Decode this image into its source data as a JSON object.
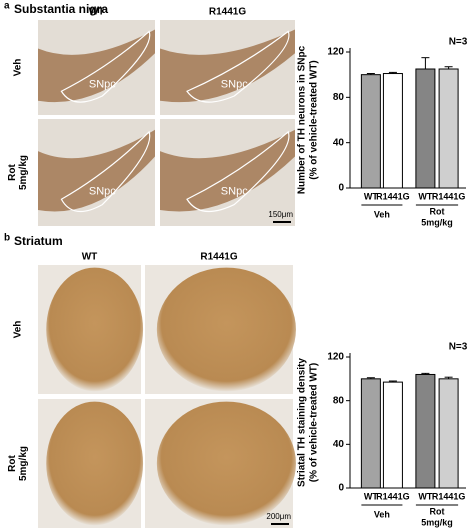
{
  "panels": [
    {
      "label": "a",
      "title": "Substantia nigra",
      "columns": [
        "WT",
        "R1441G"
      ],
      "rows": [
        {
          "lines": [
            "Veh"
          ]
        },
        {
          "lines": [
            "Rot",
            "5mg/kg"
          ]
        }
      ],
      "region_labels": [
        "SNpc",
        "SNpc",
        "SNpc",
        "SNpc"
      ],
      "scale_bar": "150μm"
    },
    {
      "label": "b",
      "title": "Striatum",
      "columns": [
        "WT",
        "R1441G"
      ],
      "rows": [
        {
          "lines": [
            "Veh"
          ]
        },
        {
          "lines": [
            "Rot",
            "5mg/kg"
          ]
        }
      ],
      "scale_bar": "200μm"
    }
  ],
  "chart_data": [
    {
      "type": "bar",
      "ylabel": [
        "Number of TH neurons in SNpc",
        "(% of vehicle-treated WT)"
      ],
      "annotation": "N=3",
      "categories": [
        "WT",
        "R1441G",
        "WT",
        "R1441G"
      ],
      "values": [
        100,
        101,
        105,
        105
      ],
      "errors": [
        1,
        1,
        10,
        2
      ],
      "colors": [
        "#a3a3a3",
        "#ffffff",
        "#858585",
        "#cfcfcf"
      ],
      "groups": [
        {
          "lines": [
            "Veh"
          ]
        },
        {
          "lines": [
            "Rot",
            "5mg/kg"
          ]
        }
      ],
      "ylim": [
        0,
        120
      ],
      "yticks": [
        0,
        40,
        80,
        120
      ]
    },
    {
      "type": "bar",
      "ylabel": [
        "Striatal TH staining density",
        "(% of vehicle-treated WT)"
      ],
      "annotation": "N=3",
      "categories": [
        "WT",
        "R1441G",
        "WT",
        "R1441G"
      ],
      "values": [
        100,
        97,
        104,
        100
      ],
      "errors": [
        1,
        1,
        1,
        1.5
      ],
      "colors": [
        "#a3a3a3",
        "#ffffff",
        "#858585",
        "#cfcfcf"
      ],
      "groups": [
        {
          "lines": [
            "Veh"
          ]
        },
        {
          "lines": [
            "Rot",
            "5mg/kg"
          ]
        }
      ],
      "ylim": [
        0,
        120
      ],
      "yticks": [
        0,
        40,
        80,
        120
      ]
    }
  ]
}
